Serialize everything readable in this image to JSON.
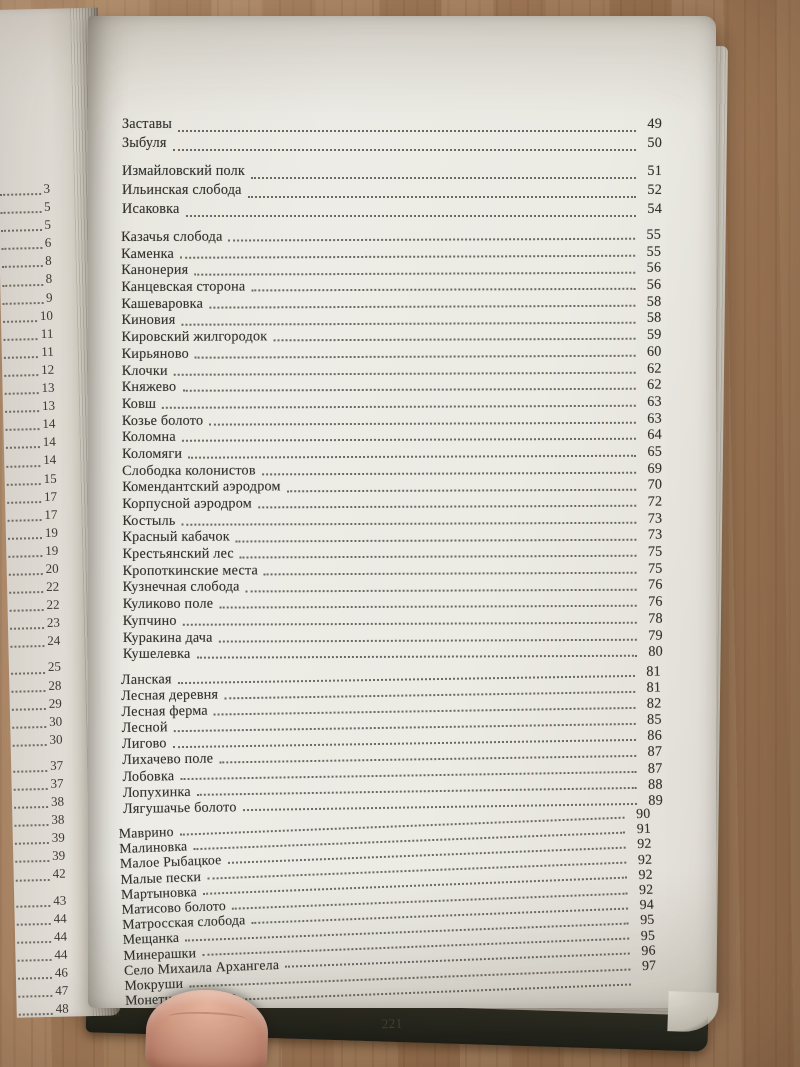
{
  "book": {
    "page_number": "221",
    "toc_groups": [
      {
        "entries": [
          {
            "t": "Заставы",
            "p": "49"
          },
          {
            "t": "Зыбуля",
            "p": "50"
          }
        ]
      },
      {
        "entries": [
          {
            "t": "Измайловский полк",
            "p": "51"
          },
          {
            "t": "Ильинская слобода",
            "p": "52"
          },
          {
            "t": "Исаковка",
            "p": "54"
          }
        ]
      },
      {
        "entries": [
          {
            "t": "Казачья слобода",
            "p": "55"
          },
          {
            "t": "Каменка",
            "p": "55"
          },
          {
            "t": "Канонерия",
            "p": "56"
          },
          {
            "t": "Канцевская сторона",
            "p": "56"
          },
          {
            "t": "Кашеваровка",
            "p": "58"
          },
          {
            "t": "Киновия",
            "p": "58"
          },
          {
            "t": "Кировский жилгородок",
            "p": "59"
          },
          {
            "t": "Кирьяново",
            "p": "60"
          },
          {
            "t": "Клочки",
            "p": "62"
          },
          {
            "t": "Княжево",
            "p": "62"
          },
          {
            "t": "Ковш",
            "p": "63"
          },
          {
            "t": "Козье болото",
            "p": "63"
          },
          {
            "t": "Коломна",
            "p": "64"
          },
          {
            "t": "Коломяги",
            "p": "65"
          },
          {
            "t": "Слободка колонистов",
            "p": "69"
          },
          {
            "t": "Комендантский аэродром",
            "p": "70"
          },
          {
            "t": "Корпусной аэродром",
            "p": "72"
          },
          {
            "t": "Костыль",
            "p": "73"
          },
          {
            "t": "Красный кабачок",
            "p": "73"
          },
          {
            "t": "Крестьянский лес",
            "p": "75"
          },
          {
            "t": "Кропоткинские места",
            "p": "75"
          },
          {
            "t": "Кузнечная слобода",
            "p": "76"
          },
          {
            "t": "Куликово поле",
            "p": "76"
          },
          {
            "t": "Купчино",
            "p": "78"
          },
          {
            "t": "Куракина дача",
            "p": "79"
          },
          {
            "t": "Кушелевка",
            "p": "80"
          }
        ]
      },
      {
        "entries": [
          {
            "t": "Ланская",
            "p": "81"
          },
          {
            "t": "Лесная деревня",
            "p": "81"
          },
          {
            "t": "Лесная ферма",
            "p": "82"
          },
          {
            "t": "Лесной",
            "p": "85"
          },
          {
            "t": "Лигово",
            "p": "86"
          },
          {
            "t": "Лихачево поле",
            "p": "87"
          },
          {
            "t": "Лобовка",
            "p": "87"
          },
          {
            "t": "Лопухинка",
            "p": "88"
          },
          {
            "t": "Лягушачье болото",
            "p": "89"
          }
        ]
      },
      {
        "entries": [
          {
            "t": "Маврино",
            "p": "90"
          },
          {
            "t": "Малиновка",
            "p": "91"
          },
          {
            "t": "Малое Рыбацкое",
            "p": "92"
          },
          {
            "t": "Малые пески",
            "p": "92"
          },
          {
            "t": "Мартыновка",
            "p": "92"
          },
          {
            "t": "Матисово болото",
            "p": "92"
          },
          {
            "t": "Матросская слобода",
            "p": "94"
          },
          {
            "t": "Мещанка",
            "p": "95"
          },
          {
            "t": "Минерашки",
            "p": "95"
          },
          {
            "t": "Село Михаила Архангела",
            "p": "96"
          },
          {
            "t": "Мокруши",
            "p": "97"
          },
          {
            "t": "Монетная слобода",
            "p": ""
          }
        ]
      }
    ]
  },
  "left_page": {
    "visible_page_numbers": [
      "3",
      "5",
      "5",
      "6",
      "8",
      "8",
      "9",
      "10",
      "11",
      "11",
      "12",
      "13",
      "13",
      "14",
      "14",
      "14",
      "15",
      "17",
      "17",
      "19",
      "19",
      "20",
      "22",
      "22",
      "23",
      "24",
      "25",
      "28",
      "29",
      "30",
      "30",
      "37",
      "37",
      "38",
      "38",
      "39",
      "39",
      "42",
      "43",
      "44",
      "44",
      "44",
      "46",
      "47",
      "48"
    ],
    "gaps_after_indices": [
      25,
      30,
      37
    ]
  },
  "colors": {
    "wood": "#ad8562",
    "page": "#ecebe4",
    "text": "#34322e",
    "cover": "#1b1e17",
    "skin": "#dda48d"
  }
}
